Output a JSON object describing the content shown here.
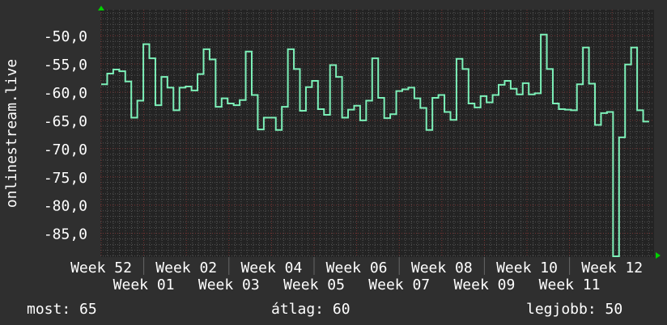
{
  "chart_data": {
    "type": "line",
    "step": true,
    "ylabel": "onlinestream.live",
    "xlabel": "",
    "ylim": [
      -89.2,
      -45.4
    ],
    "yticks": [
      -50,
      -55,
      -60,
      -65,
      -70,
      -75,
      -80,
      -85
    ],
    "ytick_labels": [
      "-50,0",
      "-55,0",
      "-60,0",
      "-65,0",
      "-70,0",
      "-75,0",
      "-80,0",
      "-85,0"
    ],
    "xtick_labels": [
      "Week 52",
      "Week 01",
      "Week 02",
      "Week 03",
      "Week 04",
      "Week 05",
      "Week 06",
      "Week 07",
      "Week 08",
      "Week 09",
      "Week 10",
      "Week 11",
      "Week 12"
    ],
    "grid": true,
    "colors": {
      "line": "#7cf0b8",
      "plot_bg": "#232323",
      "major_grid": "#7a3434",
      "minor_grid": "#555555",
      "arrow": "#00d000"
    },
    "values": [
      -58.6,
      -56.7,
      -56.0,
      -56.3,
      -58.1,
      -64.5,
      -61.5,
      -51.5,
      -54.0,
      -62.3,
      -57.3,
      -59.2,
      -63.2,
      -59.2,
      -59.0,
      -59.7,
      -56.8,
      -52.4,
      -54.2,
      -62.6,
      -61.1,
      -62.0,
      -62.3,
      -61.4,
      -52.8,
      -60.5,
      -66.6,
      -64.5,
      -64.5,
      -66.7,
      -62.6,
      -52.4,
      -55.9,
      -63.3,
      -59.1,
      -58.0,
      -63.0,
      -64.0,
      -55.2,
      -57.3,
      -64.5,
      -63.1,
      -62.4,
      -65.0,
      -61.5,
      -54.0,
      -61.0,
      -64.6,
      -63.9,
      -59.8,
      -59.5,
      -59.2,
      -61.1,
      -62.8,
      -66.7,
      -61.0,
      -60.5,
      -63.5,
      -64.9,
      -54.1,
      -55.9,
      -62.0,
      -62.7,
      -60.7,
      -61.8,
      -60.5,
      -58.7,
      -58.0,
      -59.4,
      -60.4,
      -58.4,
      -60.4,
      -60.2,
      -49.8,
      -55.9,
      -62.0,
      -63.0,
      -63.1,
      -63.2,
      -58.6,
      -52.1,
      -58.5,
      -65.8,
      -63.7,
      -63.5,
      -90.0,
      -68.0,
      -55.1,
      -52.1,
      -63.2,
      -65.2
    ]
  },
  "legend": {
    "current": "most: 65",
    "average": "átlag: 60",
    "best": "legjobb: 50"
  }
}
